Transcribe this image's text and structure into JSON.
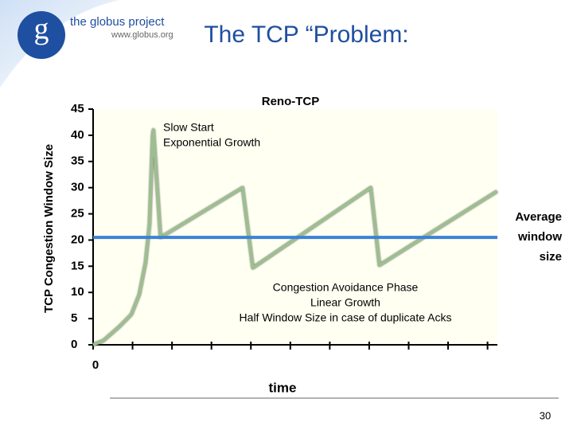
{
  "slide": {
    "title": "The TCP “Problem:",
    "logo": {
      "name": "the globus project",
      "url": "www.globus.org"
    },
    "page_number": 30
  },
  "chart_data": {
    "type": "line",
    "title": "Reno-TCP",
    "y_label": "TCP Congestion Window Size",
    "x_label": "time",
    "xlim": [
      0,
      10.25
    ],
    "xticks": [
      0,
      {
        "value": 1,
        "label": null
      },
      {
        "value": 2,
        "label": null
      },
      {
        "value": 3,
        "label": null
      },
      {
        "value": 4,
        "label": null
      },
      {
        "value": 5,
        "label": null
      },
      {
        "value": 6,
        "label": null
      },
      {
        "value": 7,
        "label": null
      },
      {
        "value": 8,
        "label": null
      },
      {
        "value": 9,
        "label": null
      },
      {
        "value": 10,
        "label": null
      }
    ],
    "ylim": [
      0,
      45
    ],
    "yticks": [
      0,
      5,
      10,
      15,
      20,
      25,
      30,
      35,
      40,
      45
    ],
    "series": [
      {
        "color": "#9dbf8f",
        "x": [
          0,
          0.26,
          0.67,
          0.97,
          1.17,
          1.33,
          1.43,
          1.51,
          1.53,
          1.71,
          3.79,
          4.05,
          7.04,
          7.26,
          10.24
        ],
        "values": [
          0,
          0.8,
          3.5,
          5.8,
          9.6,
          15.7,
          23,
          40,
          41,
          20.5,
          30,
          14.7,
          30,
          15.2,
          29.3
        ]
      }
    ],
    "average": {
      "value": 20.5,
      "label": "Average window size",
      "color": "#3b82d6"
    },
    "annotations": {
      "slow_start": [
        "Slow Start",
        "Exponential Growth"
      ],
      "congestion": [
        "Congestion Avoidance Phase",
        "Linear Growth",
        "Half Window Size in case of duplicate Acks"
      ]
    }
  }
}
